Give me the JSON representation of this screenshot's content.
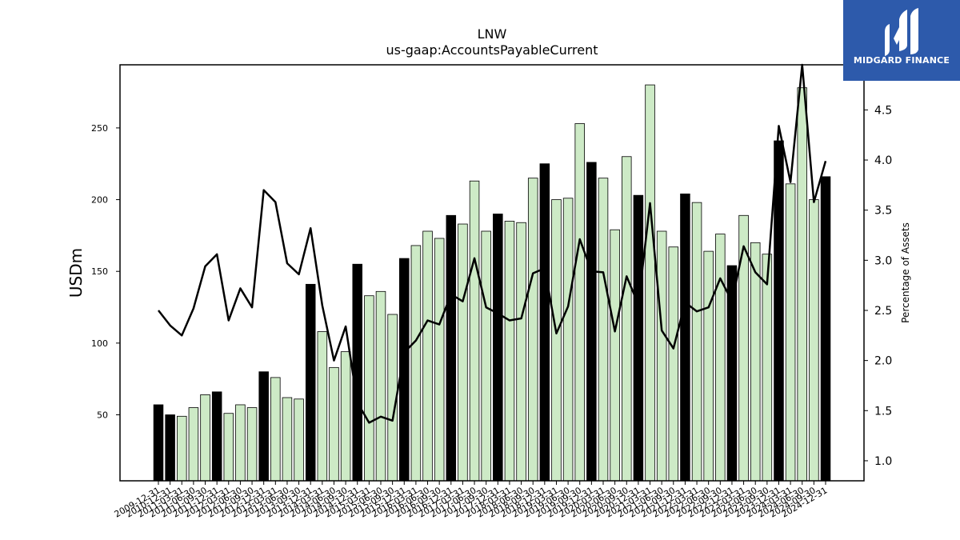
{
  "chart_data": {
    "type": "bar",
    "title": "LNW",
    "subtitle": "us-gaap:AccountsPayableCurrent",
    "ylabel": "USDm",
    "y2label": "Percentage of Assets",
    "ylim": [
      4,
      294
    ],
    "y2lim": [
      0.8,
      4.95
    ],
    "yticks": [
      50,
      100,
      150,
      200,
      250
    ],
    "y2ticks": [
      1.0,
      1.5,
      2.0,
      2.5,
      3.0,
      3.5,
      4.0,
      4.5
    ],
    "categories": [
      "2009-12-31",
      "2010-12-31",
      "2011-03-31",
      "2011-06-30",
      "2011-09-30",
      "2011-12-31",
      "2012-03-31",
      "2012-06-30",
      "2012-09-30",
      "2012-12-31",
      "2013-03-31",
      "2013-06-30",
      "2013-09-30",
      "2013-12-31",
      "2014-03-31",
      "2014-06-30",
      "2014-09-30",
      "2014-12-31",
      "2015-03-31",
      "2015-06-30",
      "2015-09-30",
      "2015-12-31",
      "2016-03-31",
      "2016-06-30",
      "2016-09-30",
      "2016-12-31",
      "2017-03-31",
      "2017-06-30",
      "2017-09-30",
      "2017-12-31",
      "2018-03-31",
      "2018-06-30",
      "2018-09-30",
      "2018-12-31",
      "2019-03-31",
      "2019-06-30",
      "2019-09-30",
      "2019-12-31",
      "2020-03-31",
      "2020-06-30",
      "2020-09-30",
      "2020-12-31",
      "2021-03-31",
      "2021-06-30",
      "2021-09-30",
      "2021-12-31",
      "2022-03-31",
      "2022-06-30",
      "2022-09-30",
      "2022-12-31",
      "2023-03-31",
      "2023-06-30",
      "2023-09-30",
      "2023-12-31",
      "2024-03-31",
      "2024-06-30",
      "2024-09-30",
      "2024-12-31"
    ],
    "series": [
      {
        "role": "bars",
        "values": [
          57,
          50,
          49,
          55,
          64,
          66,
          51,
          57,
          55,
          80,
          76,
          62,
          61,
          141,
          108,
          83,
          94,
          155,
          133,
          136,
          120,
          159,
          168,
          178,
          173,
          189,
          183,
          213,
          178,
          190,
          185,
          184,
          215,
          225,
          200,
          201,
          253,
          226,
          215,
          179,
          230,
          203,
          280,
          178,
          167,
          204,
          198,
          164,
          176,
          154,
          189,
          170,
          162,
          241,
          211,
          278,
          200,
          216
        ],
        "year_end": [
          true,
          true,
          false,
          false,
          false,
          true,
          false,
          false,
          false,
          true,
          false,
          false,
          false,
          true,
          false,
          false,
          false,
          true,
          false,
          false,
          false,
          true,
          false,
          false,
          false,
          true,
          false,
          false,
          false,
          true,
          false,
          false,
          false,
          true,
          false,
          false,
          false,
          true,
          false,
          false,
          false,
          true,
          false,
          false,
          false,
          true,
          false,
          false,
          false,
          true,
          false,
          false,
          false,
          true,
          false,
          false,
          false,
          true
        ]
      },
      {
        "role": "line",
        "values": [
          2.5,
          2.35,
          2.25,
          2.52,
          2.94,
          3.06,
          2.4,
          2.72,
          2.53,
          3.7,
          3.58,
          2.97,
          2.86,
          3.32,
          2.55,
          2.0,
          2.34,
          1.58,
          1.38,
          1.44,
          1.4,
          2.08,
          2.2,
          2.4,
          2.36,
          2.66,
          2.59,
          3.02,
          2.53,
          2.47,
          2.4,
          2.42,
          2.87,
          2.92,
          2.27,
          2.54,
          3.21,
          2.89,
          2.88,
          2.29,
          2.84,
          2.56,
          3.57,
          2.3,
          2.12,
          2.58,
          2.49,
          2.53,
          2.82,
          2.59,
          3.14,
          2.88,
          2.76,
          4.34,
          3.78,
          4.95,
          3.58,
          3.99
        ]
      }
    ],
    "colors": {
      "year_end_bar": "#000000",
      "quarter_bar": "#cdeac6",
      "bar_edge": "#000000",
      "line": "#000000"
    },
    "legend": "none",
    "grid": false
  },
  "logo": {
    "text": "MIDGARD FINANCE",
    "background": "#2d5aab"
  }
}
